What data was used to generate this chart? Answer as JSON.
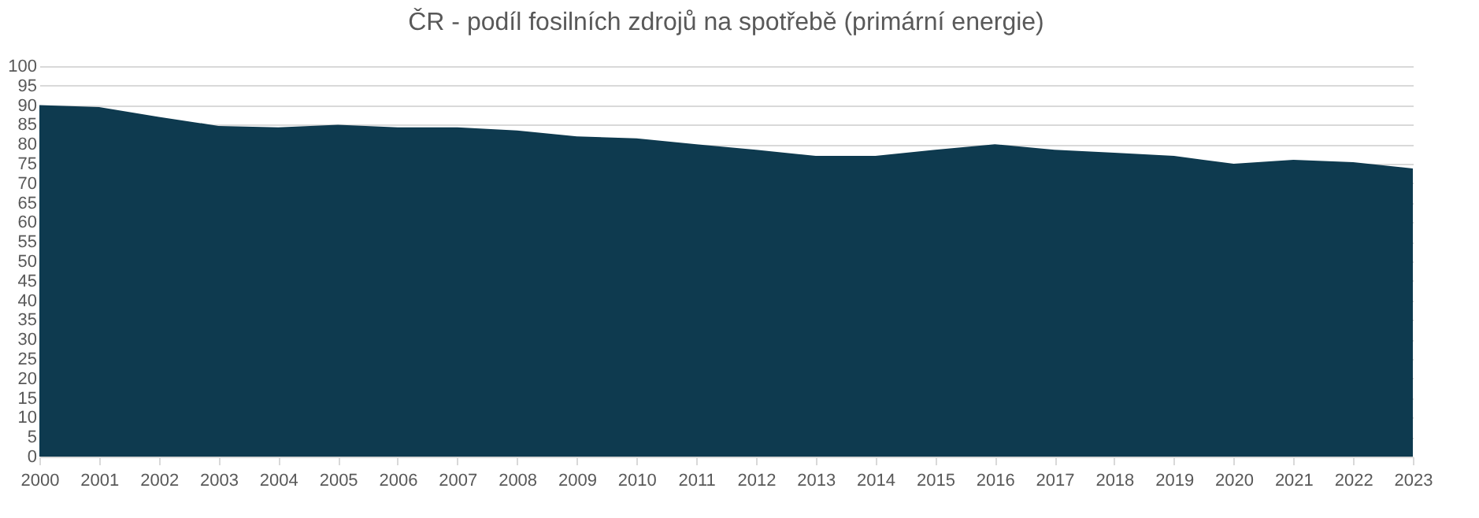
{
  "chart_data": {
    "type": "area",
    "title": "ČR - podíl fosilních zdrojů na spotřebě (primární energie)",
    "categories": [
      "2000",
      "2001",
      "2002",
      "2003",
      "2004",
      "2005",
      "2006",
      "2007",
      "2008",
      "2009",
      "2010",
      "2011",
      "2012",
      "2013",
      "2014",
      "2015",
      "2016",
      "2017",
      "2018",
      "2019",
      "2020",
      "2021",
      "2022",
      "2023"
    ],
    "series": [
      {
        "color": "#0e3a4f",
        "values": [
          90,
          89.5,
          87,
          84.7,
          84.3,
          85,
          84.3,
          84.3,
          83.5,
          82,
          81.5,
          80,
          78.6,
          77,
          77,
          78.6,
          80,
          78.6,
          77.8,
          77,
          75,
          76,
          75.4,
          73.8
        ]
      }
    ],
    "ylim": [
      0,
      100
    ],
    "yticks": [
      0,
      5,
      10,
      15,
      20,
      25,
      30,
      35,
      40,
      45,
      50,
      55,
      60,
      65,
      70,
      75,
      80,
      85,
      90,
      95,
      100
    ],
    "grid": "y",
    "legend": false
  }
}
